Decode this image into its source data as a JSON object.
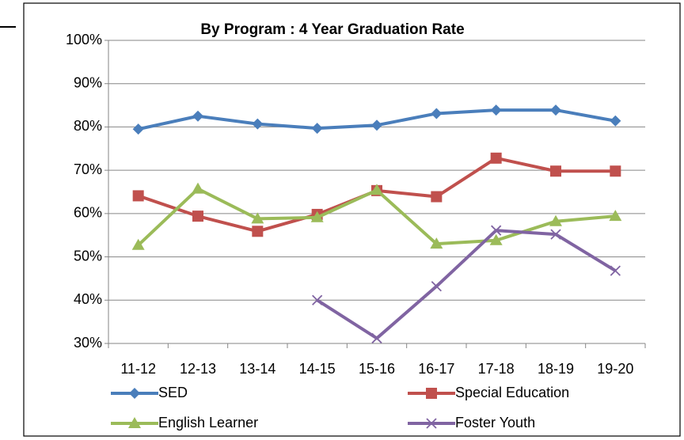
{
  "chart_data": {
    "type": "line",
    "title": "By Program :  4 Year Graduation Rate",
    "categories": [
      "11-12",
      "12-13",
      "13-14",
      "14-15",
      "15-16",
      "16-17",
      "17-18",
      "18-19",
      "19-20"
    ],
    "series": [
      {
        "name": "SED",
        "color": "#4a7ebb",
        "marker": "diamond",
        "values": [
          79.5,
          82.5,
          80.7,
          79.7,
          80.4,
          83.1,
          83.9,
          83.9,
          81.4
        ]
      },
      {
        "name": "Special Education",
        "color": "#c0504d",
        "marker": "square",
        "values": [
          64.1,
          59.4,
          55.9,
          59.8,
          65.3,
          63.9,
          72.8,
          69.8,
          69.8
        ]
      },
      {
        "name": "English Learner",
        "color": "#9bbb59",
        "marker": "triangle",
        "values": [
          52.7,
          65.7,
          58.8,
          59.1,
          65.4,
          53.0,
          53.8,
          58.2,
          59.4
        ]
      },
      {
        "name": "Foster Youth",
        "color": "#8064a2",
        "marker": "x",
        "values": [
          null,
          null,
          null,
          40.0,
          31.2,
          43.2,
          56.1,
          55.2,
          46.8
        ]
      }
    ],
    "ylim": [
      30,
      100
    ],
    "yticks": [
      {
        "value": 30,
        "label": "30%"
      },
      {
        "value": 40,
        "label": "40%"
      },
      {
        "value": 50,
        "label": "50%"
      },
      {
        "value": 60,
        "label": "60%"
      },
      {
        "value": 70,
        "label": "70%"
      },
      {
        "value": 80,
        "label": "80%"
      },
      {
        "value": 90,
        "label": "90%"
      },
      {
        "value": 100,
        "label": "100%"
      }
    ],
    "grid": true
  }
}
